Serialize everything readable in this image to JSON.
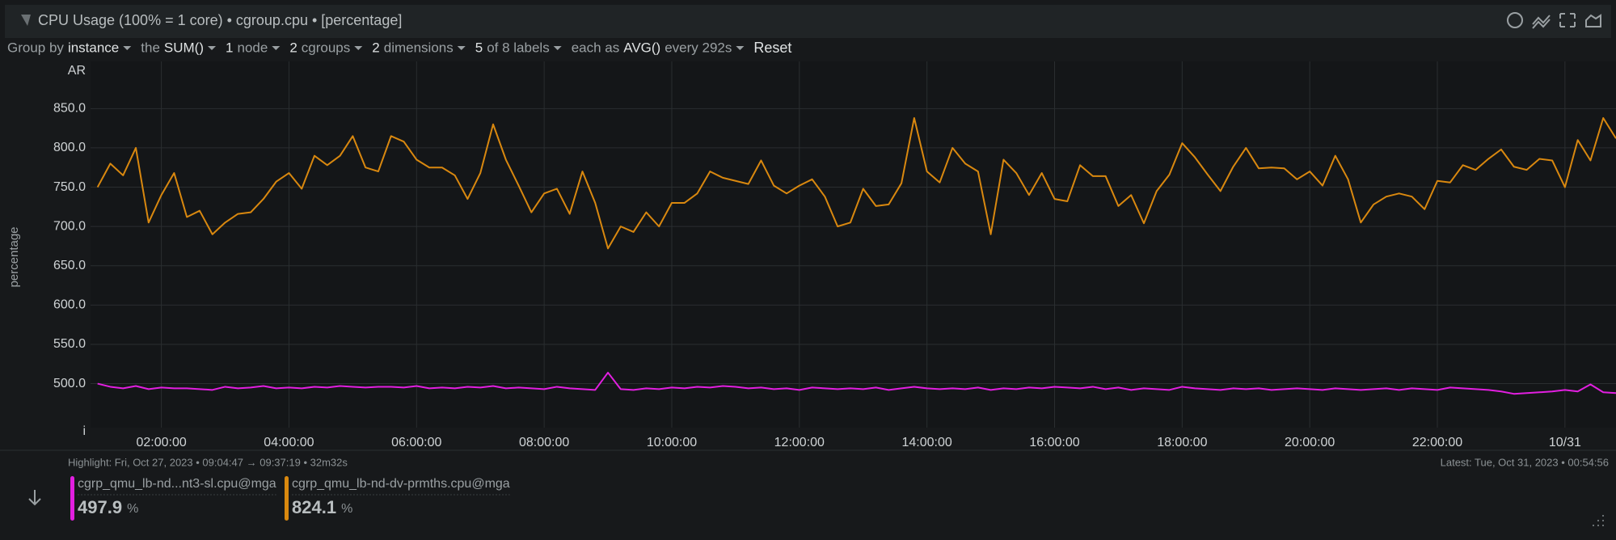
{
  "header": {
    "title": "CPU Usage (100% = 1 core) • cgroup.cpu • [percentage]"
  },
  "toolbar": [
    {
      "text": "Group by",
      "bright": false
    },
    {
      "text": "instance",
      "bright": true,
      "caret": true
    },
    {
      "text": "the",
      "bright": false
    },
    {
      "text": "SUM()",
      "bright": true,
      "caret": true
    },
    {
      "text": "1",
      "bright": true
    },
    {
      "text": "node",
      "bright": false,
      "caret": true
    },
    {
      "text": "2",
      "bright": true
    },
    {
      "text": "cgroups",
      "bright": false,
      "caret": true
    },
    {
      "text": "2",
      "bright": true
    },
    {
      "text": "dimensions",
      "bright": false,
      "caret": true
    },
    {
      "text": "5",
      "bright": true
    },
    {
      "text": "of 8 labels",
      "bright": false,
      "caret": true
    },
    {
      "text": "each as",
      "bright": false
    },
    {
      "text": "AVG()",
      "bright": true
    },
    {
      "text": "every 292s",
      "bright": false,
      "caret": true
    },
    {
      "text": "Reset",
      "bright": true,
      "button": true
    }
  ],
  "chart_data": {
    "type": "line",
    "ylabel": "percentage",
    "y_top_label": "AR",
    "y_bottom_label": "i",
    "xlim": [
      0.89,
      24.8
    ],
    "ylim": [
      444,
      910
    ],
    "grid": true,
    "xticks": [
      {
        "value": 2,
        "label": "02:00:00"
      },
      {
        "value": 4,
        "label": "04:00:00"
      },
      {
        "value": 6,
        "label": "06:00:00"
      },
      {
        "value": 8,
        "label": "08:00:00"
      },
      {
        "value": 10,
        "label": "10:00:00"
      },
      {
        "value": 12,
        "label": "12:00:00"
      },
      {
        "value": 14,
        "label": "14:00:00"
      },
      {
        "value": 16,
        "label": "16:00:00"
      },
      {
        "value": 18,
        "label": "18:00:00"
      },
      {
        "value": 20,
        "label": "20:00:00"
      },
      {
        "value": 22,
        "label": "22:00:00"
      },
      {
        "value": 24,
        "label": "10/31"
      }
    ],
    "yticks": [
      {
        "value": 500,
        "label": "500.0"
      },
      {
        "value": 550,
        "label": "550.0"
      },
      {
        "value": 600,
        "label": "600.0"
      },
      {
        "value": 650,
        "label": "650.0"
      },
      {
        "value": 700,
        "label": "700.0"
      },
      {
        "value": 750,
        "label": "750.0"
      },
      {
        "value": 800,
        "label": "800.0"
      },
      {
        "value": 850,
        "label": "850.0"
      }
    ],
    "x": [
      1,
      1.2,
      1.4,
      1.6,
      1.8,
      2,
      2.2,
      2.4,
      2.6,
      2.8,
      3,
      3.2,
      3.4,
      3.6,
      3.8,
      4,
      4.2,
      4.4,
      4.6,
      4.8,
      5,
      5.2,
      5.4,
      5.6,
      5.8,
      6,
      6.2,
      6.4,
      6.6,
      6.8,
      7,
      7.2,
      7.4,
      7.6,
      7.8,
      8,
      8.2,
      8.4,
      8.6,
      8.8,
      9,
      9.2,
      9.4,
      9.6,
      9.8,
      10,
      10.2,
      10.4,
      10.6,
      10.8,
      11,
      11.2,
      11.4,
      11.6,
      11.8,
      12,
      12.2,
      12.4,
      12.6,
      12.8,
      13,
      13.2,
      13.4,
      13.6,
      13.8,
      14,
      14.2,
      14.4,
      14.6,
      14.8,
      15,
      15.2,
      15.4,
      15.6,
      15.8,
      16,
      16.2,
      16.4,
      16.6,
      16.8,
      17,
      17.2,
      17.4,
      17.6,
      17.8,
      18,
      18.2,
      18.4,
      18.6,
      18.8,
      19,
      19.2,
      19.4,
      19.6,
      19.8,
      20,
      20.2,
      20.4,
      20.6,
      20.8,
      21,
      21.2,
      21.4,
      21.6,
      21.8,
      22,
      22.2,
      22.4,
      22.6,
      22.8,
      23,
      23.2,
      23.4,
      23.6,
      23.8,
      24,
      24.2,
      24.4,
      24.6,
      24.8
    ],
    "series": [
      {
        "name": "cgrp_qmu_lb-nd...nt3-sl.cpu@mga",
        "color": "#e21fe0",
        "values": [
          500,
          496,
          494,
          497,
          493,
          495,
          494,
          494,
          493,
          492,
          496,
          494,
          495,
          497,
          494,
          495,
          494,
          496,
          495,
          497,
          496,
          495,
          496,
          496,
          495,
          497,
          494,
          495,
          494,
          496,
          495,
          497,
          494,
          495,
          494,
          493,
          496,
          494,
          493,
          492,
          514,
          493,
          492,
          494,
          493,
          495,
          494,
          496,
          495,
          497,
          496,
          494,
          495,
          493,
          494,
          492,
          495,
          494,
          493,
          494,
          493,
          495,
          492,
          494,
          496,
          494,
          493,
          494,
          493,
          495,
          492,
          494,
          493,
          495,
          494,
          496,
          495,
          494,
          496,
          493,
          495,
          492,
          494,
          493,
          492,
          496,
          494,
          493,
          492,
          494,
          493,
          494,
          492,
          493,
          494,
          493,
          492,
          494,
          493,
          492,
          493,
          494,
          492,
          494,
          493,
          492,
          495,
          494,
          493,
          492,
          490,
          487,
          488,
          489,
          490,
          492,
          490,
          499,
          489,
          488
        ]
      },
      {
        "name": "cgrp_qmu_lb-nd-dv-prmths.cpu@mga",
        "color": "#d9880f",
        "values": [
          750,
          780,
          765,
          800,
          705,
          740,
          768,
          712,
          720,
          690,
          705,
          716,
          718,
          735,
          757,
          768,
          748,
          790,
          778,
          790,
          815,
          775,
          770,
          815,
          808,
          785,
          775,
          775,
          765,
          735,
          768,
          830,
          785,
          752,
          718,
          742,
          748,
          716,
          770,
          730,
          672,
          700,
          693,
          718,
          700,
          730,
          730,
          742,
          770,
          762,
          758,
          754,
          784,
          752,
          742,
          752,
          760,
          738,
          700,
          705,
          748,
          726,
          728,
          755,
          838,
          770,
          756,
          800,
          780,
          770,
          690,
          785,
          768,
          740,
          768,
          735,
          732,
          778,
          764,
          764,
          726,
          740,
          704,
          745,
          766,
          806,
          788,
          766,
          745,
          776,
          800,
          774,
          775,
          774,
          760,
          770,
          752,
          790,
          760,
          705,
          728,
          738,
          742,
          738,
          722,
          758,
          756,
          778,
          772,
          786,
          798,
          776,
          772,
          786,
          784,
          750,
          810,
          784,
          838,
          812
        ]
      }
    ]
  },
  "highlight": "Highlight:  Fri, Oct 27, 2023 •  09:04:47 → 09:37:19 • 32m32s",
  "latest": "Latest:  Tue, Oct 31, 2023 • 00:54:56",
  "legend": [
    {
      "value": 497.9,
      "unit": "%"
    },
    {
      "value": 824.1,
      "unit": "%"
    }
  ]
}
